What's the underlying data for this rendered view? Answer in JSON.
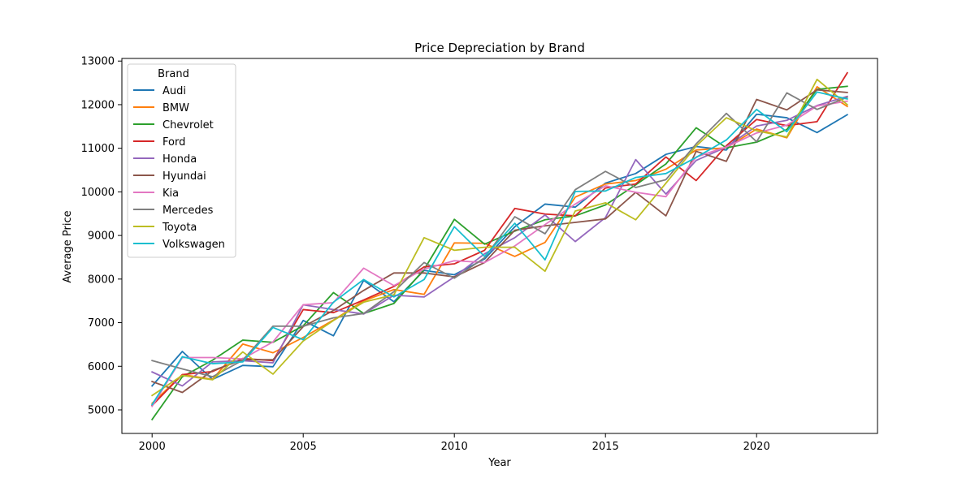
{
  "chart_data": {
    "type": "line",
    "title": "Price Depreciation by Brand",
    "xlabel": "Year",
    "ylabel": "Average Price",
    "xlim": [
      1999,
      2024
    ],
    "ylim": [
      4500,
      13000
    ],
    "xticks": [
      2000,
      2005,
      2010,
      2015,
      2020
    ],
    "yticks": [
      5000,
      6000,
      7000,
      8000,
      9000,
      10000,
      11000,
      12000,
      13000
    ],
    "grid": false,
    "legend": {
      "title": "Brand",
      "placement": "top-left"
    },
    "x": [
      2000,
      2001,
      2002,
      2003,
      2004,
      2005,
      2006,
      2007,
      2008,
      2009,
      2010,
      2011,
      2012,
      2013,
      2014,
      2015,
      2016,
      2017,
      2018,
      2019,
      2020,
      2021,
      2022,
      2023
    ],
    "series": [
      {
        "name": "Audi",
        "color": "#1f77b4",
        "values": [
          5550,
          6340,
          5700,
          6020,
          5990,
          7050,
          6700,
          7970,
          7480,
          8200,
          8100,
          8460,
          9200,
          9720,
          9650,
          10200,
          10420,
          10860,
          11040,
          10960,
          11780,
          11700,
          11360,
          11770
        ]
      },
      {
        "name": "BMW",
        "color": "#ff7f0e",
        "values": [
          5150,
          5810,
          5700,
          6510,
          6310,
          6660,
          7060,
          7500,
          7760,
          7650,
          8830,
          8820,
          8520,
          8840,
          9880,
          10180,
          10260,
          10520,
          10960,
          11010,
          11440,
          11240,
          12410,
          11960
        ]
      },
      {
        "name": "Chevrolet",
        "color": "#2ca02c",
        "values": [
          4780,
          5760,
          6140,
          6600,
          6550,
          6930,
          7690,
          7210,
          7440,
          8220,
          9370,
          8800,
          9100,
          9360,
          9450,
          9700,
          10160,
          10640,
          11470,
          11010,
          11140,
          11430,
          12350,
          12420
        ]
      },
      {
        "name": "Ford",
        "color": "#d62728",
        "values": [
          5100,
          5810,
          5880,
          6180,
          6130,
          7300,
          7230,
          7520,
          7830,
          8280,
          8350,
          8660,
          9620,
          9490,
          9450,
          10090,
          10180,
          10800,
          10260,
          11060,
          11660,
          11520,
          11610,
          12730
        ]
      },
      {
        "name": "Honda",
        "color": "#9467bd",
        "values": [
          5870,
          5550,
          6100,
          6130,
          6080,
          7410,
          7300,
          7200,
          7630,
          7590,
          8050,
          8580,
          8950,
          9470,
          8860,
          9410,
          10740,
          9950,
          10720,
          11030,
          11510,
          11640,
          11980,
          12190
        ]
      },
      {
        "name": "Hyundai",
        "color": "#8c564b",
        "values": [
          5650,
          5400,
          5900,
          6150,
          6150,
          6910,
          7280,
          7740,
          8140,
          8140,
          8050,
          8380,
          9120,
          9220,
          9300,
          9380,
          9990,
          9450,
          10930,
          10700,
          12120,
          11880,
          12340,
          12280
        ]
      },
      {
        "name": "Kia",
        "color": "#e377c2",
        "values": [
          5080,
          6200,
          6200,
          6170,
          6560,
          7410,
          7460,
          8250,
          7850,
          8230,
          8420,
          8380,
          8760,
          9250,
          9720,
          10140,
          9990,
          9890,
          10800,
          11030,
          11350,
          11530,
          11970,
          12080
        ]
      },
      {
        "name": "Mercedes",
        "color": "#7f7f7f",
        "values": [
          6130,
          5940,
          5760,
          6140,
          6920,
          6920,
          7110,
          7210,
          7710,
          8380,
          8020,
          8490,
          9430,
          9040,
          10050,
          10470,
          10100,
          10280,
          11100,
          11800,
          11150,
          12270,
          11890,
          12170
        ]
      },
      {
        "name": "Toyota",
        "color": "#bcbd22",
        "values": [
          5330,
          5790,
          5690,
          6330,
          5820,
          6580,
          7050,
          7470,
          7640,
          8950,
          8660,
          8730,
          8730,
          8180,
          9560,
          9750,
          9360,
          10200,
          11050,
          11700,
          11400,
          11260,
          12580,
          12000
        ]
      },
      {
        "name": "Volkswagen",
        "color": "#17becf",
        "values": [
          5120,
          6220,
          6060,
          6100,
          6890,
          6610,
          7470,
          7990,
          7590,
          7990,
          9200,
          8520,
          9280,
          8440,
          10010,
          10020,
          10330,
          10420,
          10790,
          11190,
          11890,
          11380,
          12290,
          12130
        ]
      }
    ]
  }
}
